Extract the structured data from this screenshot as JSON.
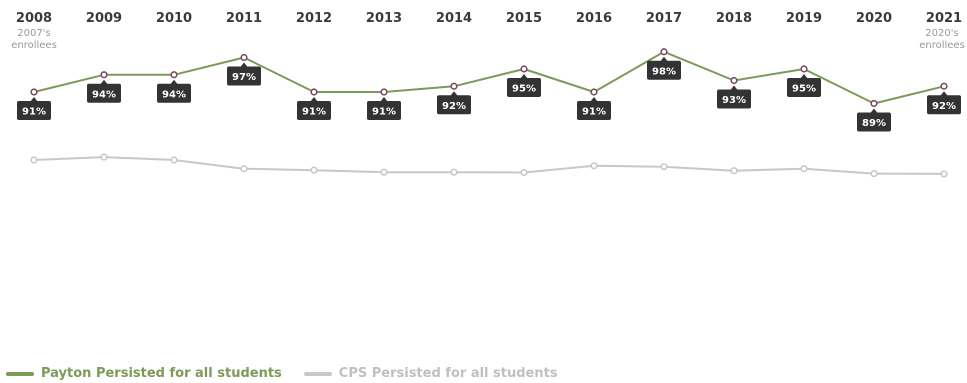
{
  "chart_data": {
    "type": "line",
    "categories": [
      "2008",
      "2009",
      "2010",
      "2011",
      "2012",
      "2013",
      "2014",
      "2015",
      "2016",
      "2017",
      "2018",
      "2019",
      "2020",
      "2021"
    ],
    "first_note": [
      "2007's",
      "enrollees"
    ],
    "last_note": [
      "2020's",
      "enrollees"
    ],
    "series": [
      {
        "name": "Payton Persisted for all students",
        "color": "#7d9a5a",
        "marker_color": "#7a4b5e",
        "values": [
          91,
          94,
          94,
          97,
          91,
          91,
          92,
          95,
          91,
          98,
          93,
          95,
          89,
          92
        ],
        "labels": [
          "91%",
          "94%",
          "94%",
          "97%",
          "91%",
          "91%",
          "92%",
          "95%",
          "91%",
          "98%",
          "93%",
          "95%",
          "89%",
          "92%"
        ]
      },
      {
        "name": "CPS Persisted for all students",
        "color": "#c8c8c8",
        "marker_color": "#c8c8c8",
        "values": [
          91,
          92,
          91,
          88,
          87.5,
          86.8,
          86.8,
          86.7,
          89,
          88.7,
          87.3,
          88,
          86.3,
          86.2
        ]
      }
    ],
    "legend": "bottom-left"
  }
}
